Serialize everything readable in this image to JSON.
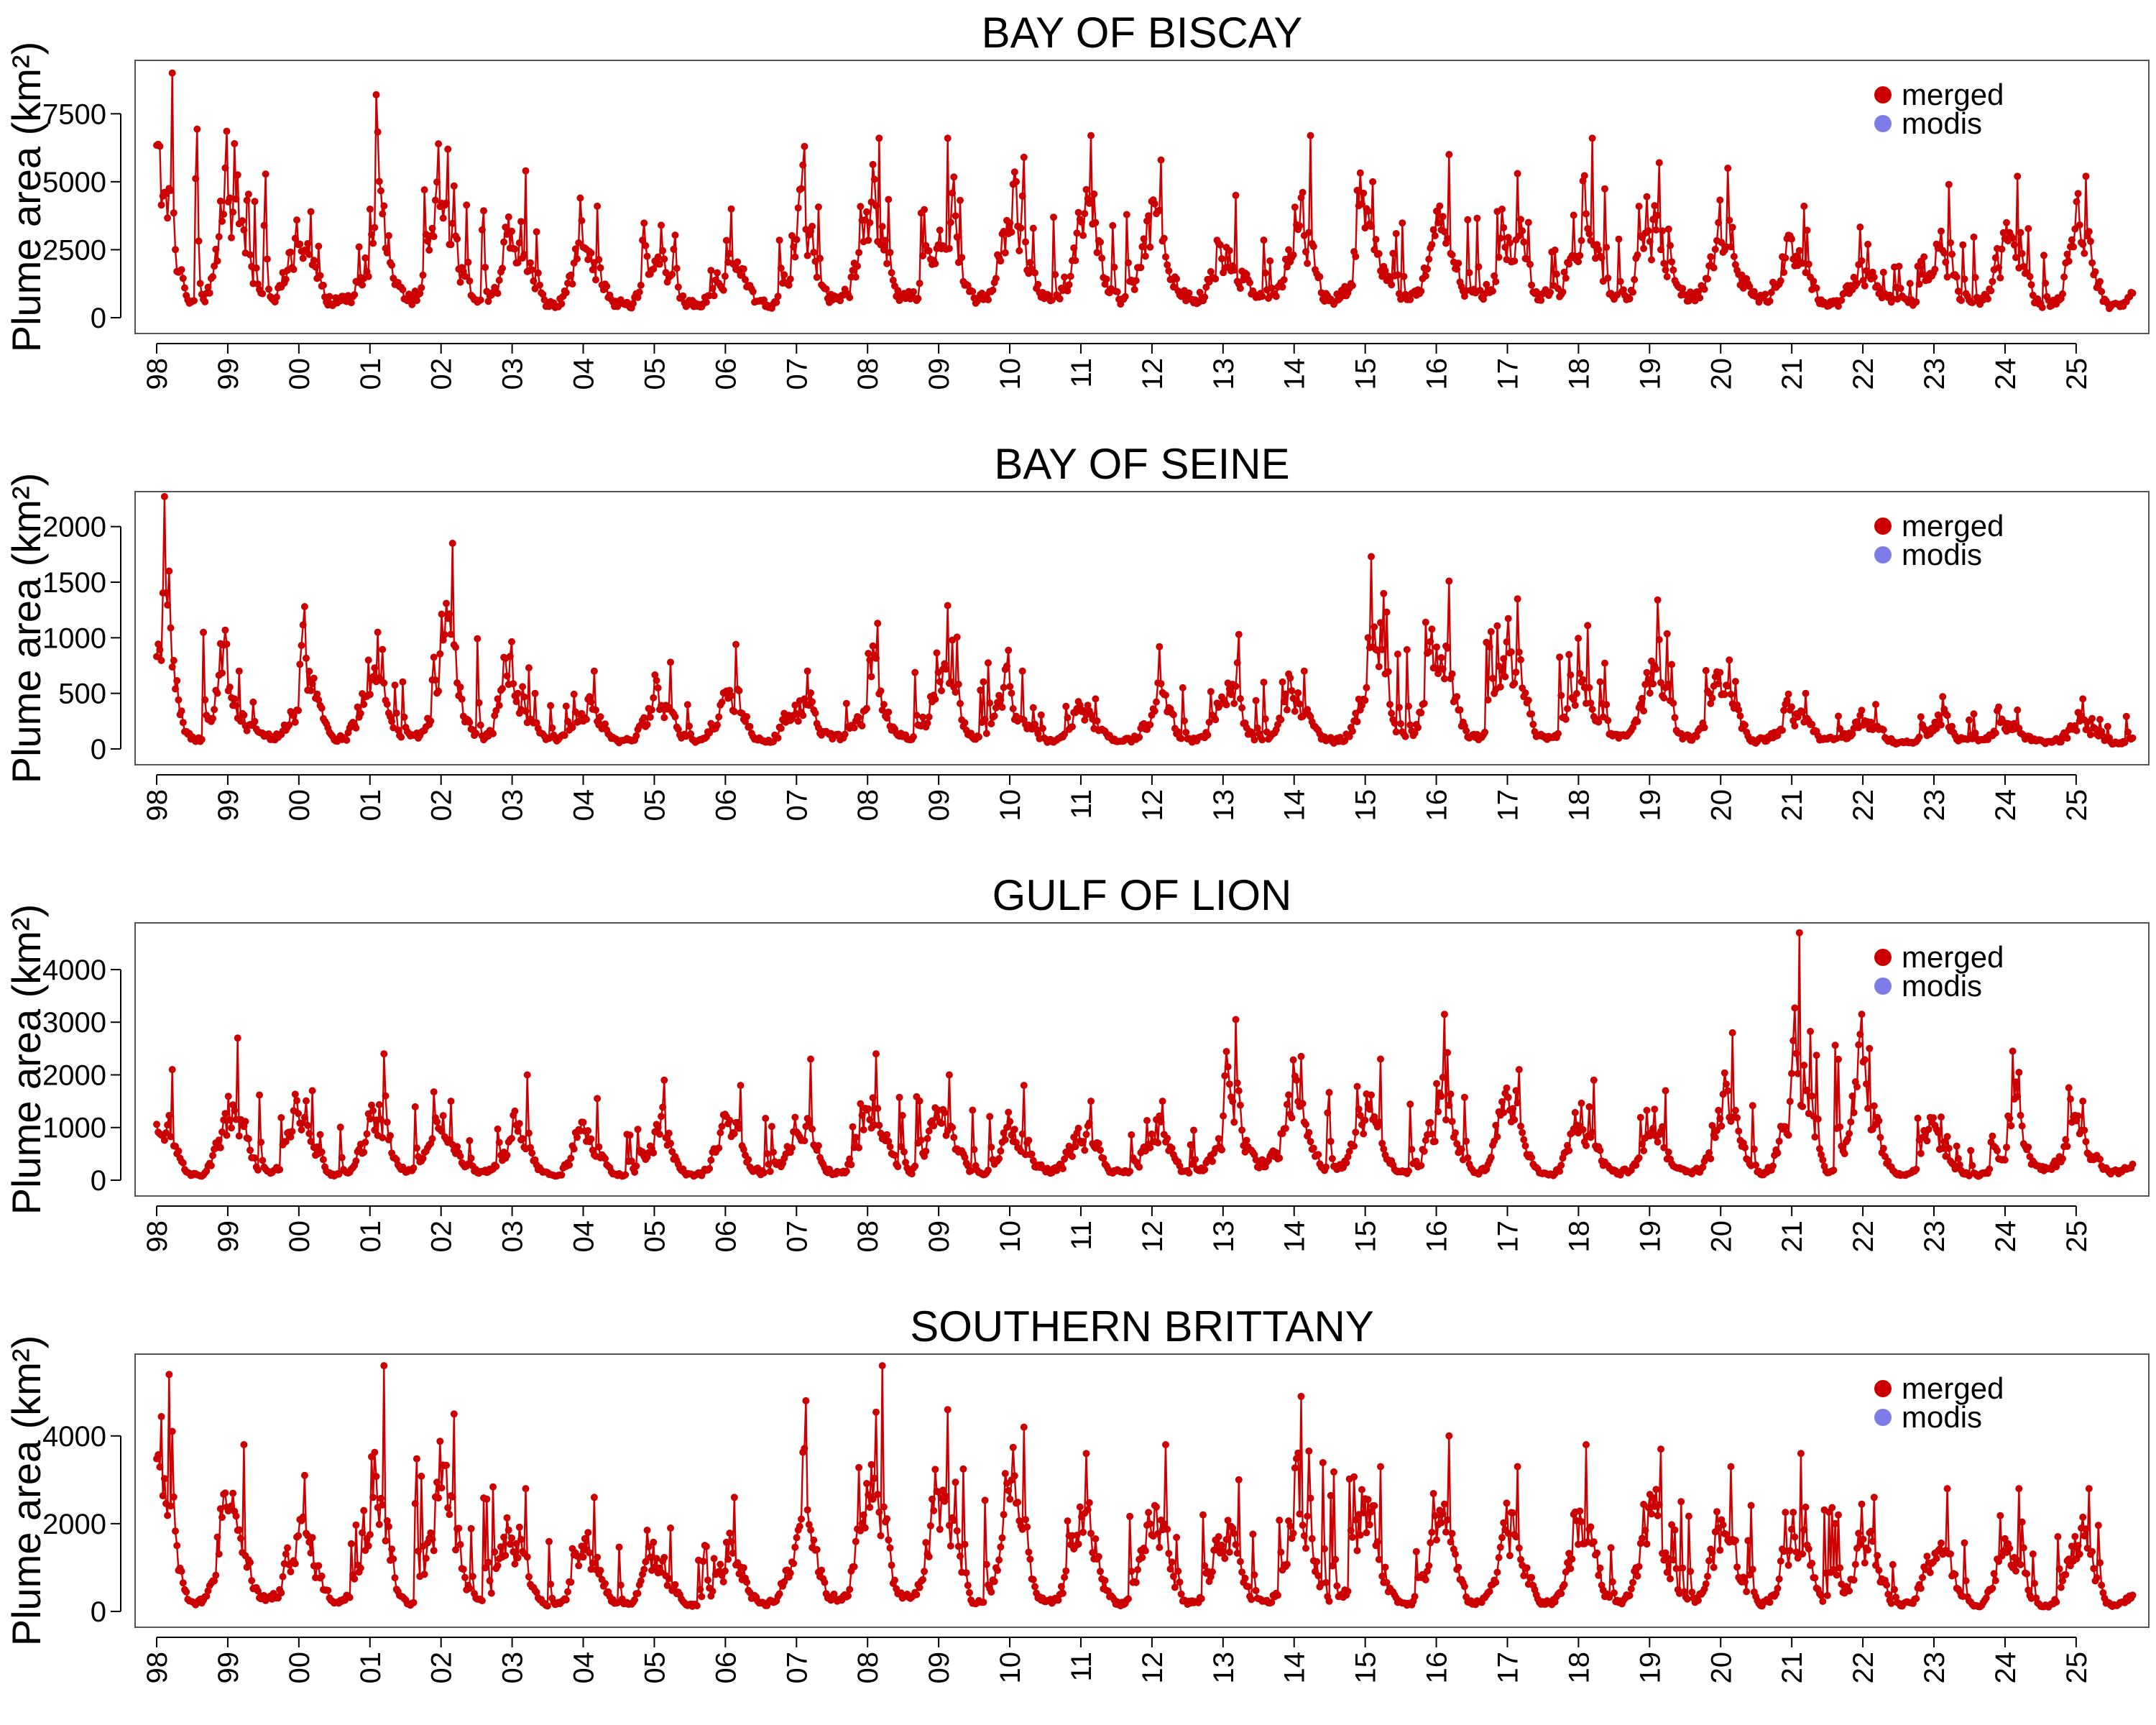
{
  "chart_data": [
    {
      "type": "line",
      "title": "BAY OF BISCAY",
      "ylabel": "Plume area (km²)",
      "xlabel": "",
      "ylim": [
        0,
        9200
      ],
      "yticks": [
        0,
        2500,
        5000,
        7500
      ],
      "xlim": [
        1998,
        2025.8
      ],
      "xtick_labels": [
        "98",
        "99",
        "00",
        "01",
        "02",
        "03",
        "04",
        "05",
        "06",
        "07",
        "08",
        "09",
        "10",
        "11",
        "12",
        "13",
        "14",
        "15",
        "16",
        "17",
        "18",
        "19",
        "20",
        "21",
        "22",
        "23",
        "24",
        "25"
      ],
      "grid": false,
      "legend_position": "top-right",
      "legend": [
        "merged",
        "modis"
      ],
      "series": [
        {
          "name": "merged",
          "color": "#cc0000",
          "annual_peaks": [
            9000,
            6400,
            3900,
            8200,
            6200,
            5400,
            4100,
            3400,
            4000,
            6300,
            6600,
            6600,
            5900,
            6700,
            5800,
            4500,
            6700,
            5000,
            6000,
            5300,
            6600,
            5700,
            5500,
            4100,
            2700,
            4900,
            5200,
            5200
          ],
          "annual_base": [
            500,
            700,
            600,
            700,
            600,
            500,
            500,
            500,
            500,
            700,
            700,
            700,
            700,
            700,
            700,
            700,
            700,
            700,
            800,
            800,
            800,
            800,
            700,
            500,
            500,
            500,
            500,
            400
          ],
          "x": [],
          "values": []
        },
        {
          "name": "modis",
          "color": "#7b7ce8",
          "x": [],
          "values": []
        }
      ]
    },
    {
      "type": "line",
      "title": "BAY OF SEINE",
      "ylabel": "Plume area (km²)",
      "xlabel": "",
      "ylim": [
        0,
        2250
      ],
      "yticks": [
        0,
        500,
        1000,
        1500,
        2000
      ],
      "xlim": [
        1998,
        2025.8
      ],
      "xtick_labels": [
        "98",
        "99",
        "00",
        "01",
        "02",
        "03",
        "04",
        "05",
        "06",
        "07",
        "08",
        "09",
        "10",
        "11",
        "12",
        "13",
        "14",
        "15",
        "16",
        "17",
        "18",
        "19",
        "20",
        "21",
        "22",
        "23",
        "24",
        "25"
      ],
      "grid": false,
      "legend_position": "top-right",
      "legend": [
        "merged",
        "modis"
      ],
      "series": [
        {
          "name": "merged",
          "color": "#cc0000",
          "annual_peaks": [
            2270,
            700,
            1280,
            1050,
            1850,
            730,
            700,
            780,
            940,
            700,
            1130,
            1290,
            700,
            450,
            920,
            1030,
            700,
            1730,
            1510,
            1350,
            1110,
            1340,
            800,
            500,
            400,
            470,
            350,
            450
          ],
          "annual_base": [
            80,
            100,
            100,
            100,
            100,
            80,
            80,
            80,
            80,
            100,
            100,
            100,
            80,
            80,
            80,
            80,
            80,
            100,
            100,
            100,
            100,
            100,
            80,
            80,
            60,
            60,
            60,
            50
          ],
          "x": [],
          "values": []
        },
        {
          "name": "modis",
          "color": "#7b7ce8",
          "x": [],
          "values": []
        }
      ]
    },
    {
      "type": "line",
      "title": "GULF OF LION",
      "ylabel": "Plume area (km²)",
      "xlabel": "",
      "ylim": [
        0,
        4750
      ],
      "yticks": [
        0,
        1000,
        2000,
        3000,
        4000
      ],
      "xlim": [
        1998,
        2025.8
      ],
      "xtick_labels": [
        "98",
        "99",
        "00",
        "01",
        "02",
        "03",
        "04",
        "05",
        "06",
        "07",
        "08",
        "09",
        "10",
        "11",
        "12",
        "13",
        "14",
        "15",
        "16",
        "17",
        "18",
        "19",
        "20",
        "21",
        "22",
        "23",
        "24",
        "25"
      ],
      "grid": false,
      "legend_position": "top-right",
      "legend": [
        "merged",
        "modis"
      ],
      "series": [
        {
          "name": "merged",
          "color": "#cc0000",
          "annual_peaks": [
            2100,
            2700,
            1700,
            2400,
            1500,
            2000,
            1550,
            1900,
            1800,
            2300,
            2400,
            2000,
            1800,
            1500,
            1500,
            3050,
            2350,
            2300,
            3150,
            2100,
            1900,
            1700,
            2800,
            4700,
            2500,
            1200,
            2450,
            1500
          ],
          "annual_base": [
            100,
            150,
            100,
            200,
            150,
            100,
            100,
            100,
            150,
            150,
            200,
            150,
            200,
            150,
            150,
            300,
            200,
            150,
            150,
            100,
            150,
            150,
            150,
            150,
            100,
            100,
            200,
            150
          ],
          "x": [],
          "values": []
        },
        {
          "name": "modis",
          "color": "#7b7ce8",
          "x": [],
          "values": []
        }
      ]
    },
    {
      "type": "line",
      "title": "SOUTHERN BRITTANY",
      "ylabel": "Plume area (km²)",
      "xlabel": "",
      "ylim": [
        0,
        5700
      ],
      "yticks": [
        0,
        2000,
        4000
      ],
      "xlim": [
        1998,
        2025.8
      ],
      "xtick_labels": [
        "98",
        "99",
        "00",
        "01",
        "02",
        "03",
        "04",
        "05",
        "06",
        "07",
        "08",
        "09",
        "10",
        "11",
        "12",
        "13",
        "14",
        "15",
        "16",
        "17",
        "18",
        "19",
        "20",
        "21",
        "22",
        "23",
        "24",
        "25"
      ],
      "grid": false,
      "legend_position": "top-right",
      "legend": [
        "merged",
        "modis"
      ],
      "series": [
        {
          "name": "merged",
          "color": "#cc0000",
          "annual_peaks": [
            5400,
            3800,
            3100,
            5600,
            4500,
            2800,
            2600,
            1900,
            2600,
            4800,
            5600,
            4600,
            4200,
            3600,
            3800,
            3000,
            4900,
            3300,
            4000,
            3300,
            3800,
            3700,
            3300,
            3600,
            2600,
            2800,
            2800,
            2800
          ],
          "annual_base": [
            200,
            300,
            250,
            200,
            200,
            150,
            150,
            150,
            200,
            300,
            300,
            200,
            200,
            200,
            200,
            200,
            200,
            200,
            200,
            200,
            200,
            200,
            200,
            150,
            150,
            150,
            150,
            150
          ],
          "x": [],
          "values": []
        },
        {
          "name": "modis",
          "color": "#7b7ce8",
          "x": [],
          "values": []
        }
      ]
    }
  ]
}
